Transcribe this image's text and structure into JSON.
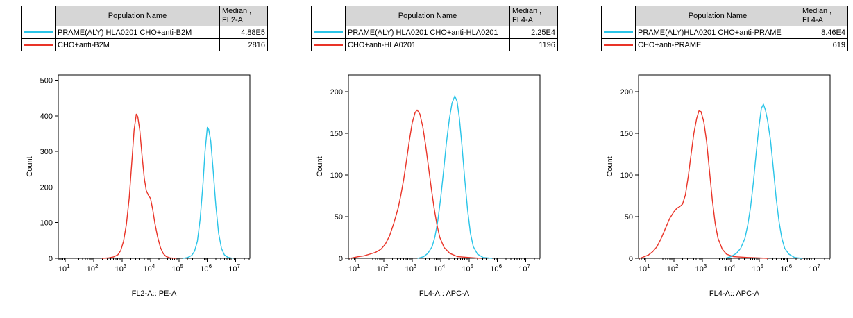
{
  "colors": {
    "cyan": "#29C4E8",
    "red": "#E93428",
    "table_header_bg": "#D6D6D6",
    "axis": "#000000",
    "background": "#FFFFFF"
  },
  "panels": [
    {
      "table": {
        "population_header": "Population Name",
        "median_header_line1": "Median ,",
        "median_header_line2": "FL2-A",
        "rows": [
          {
            "color_key": "cyan",
            "name": "PRAME(ALY) HLA0201 CHO+anti-B2M",
            "median": "4.88E5"
          },
          {
            "color_key": "red",
            "name": "CHO+anti-B2M",
            "median": "2816"
          }
        ]
      }
    },
    {
      "table": {
        "population_header": "Population Name",
        "median_header_line1": "Median ,",
        "median_header_line2": "FL4-A",
        "rows": [
          {
            "color_key": "cyan",
            "name": "PRAME(ALY) HLA0201 CHO+anti-HLA0201",
            "median": "2.25E4"
          },
          {
            "color_key": "red",
            "name": "CHO+anti-HLA0201",
            "median": "1196"
          }
        ]
      }
    },
    {
      "table": {
        "population_header": "Population Name",
        "median_header_line1": "Median ,",
        "median_header_line2": "FL4-A",
        "rows": [
          {
            "color_key": "cyan",
            "name": "PRAME(ALY)HLA0201 CHO+anti-PRAME",
            "median": "8.46E4"
          },
          {
            "color_key": "red",
            "name": "CHO+anti-PRAME",
            "median": "619"
          }
        ]
      }
    }
  ],
  "chart_data": [
    {
      "type": "line",
      "title": "",
      "xlabel": "FL2-A:: PE-A",
      "ylabel": "Count",
      "x_scale": "log10",
      "xlim_log10": [
        0.75,
        7.5
      ],
      "xtick_exponents": [
        1,
        2,
        3,
        4,
        5,
        6,
        7
      ],
      "ylim": [
        0,
        515
      ],
      "yticks": [
        0,
        100,
        200,
        300,
        400,
        500
      ],
      "grid": false,
      "legend": "table-above",
      "series": [
        {
          "name": "PRAME(ALY) HLA0201 CHO+anti-B2M",
          "color_key": "cyan",
          "peak_x_log10": 6.0,
          "peak_count": 368,
          "points": [
            [
              5.15,
              0
            ],
            [
              5.3,
              2
            ],
            [
              5.45,
              8
            ],
            [
              5.55,
              20
            ],
            [
              5.65,
              48
            ],
            [
              5.75,
              110
            ],
            [
              5.85,
              210
            ],
            [
              5.92,
              300
            ],
            [
              6.0,
              368
            ],
            [
              6.05,
              362
            ],
            [
              6.12,
              330
            ],
            [
              6.2,
              255
            ],
            [
              6.3,
              150
            ],
            [
              6.4,
              70
            ],
            [
              6.5,
              28
            ],
            [
              6.6,
              10
            ],
            [
              6.72,
              3
            ],
            [
              6.9,
              0
            ]
          ]
        },
        {
          "name": "CHO+anti-B2M",
          "color_key": "red",
          "peak_x_log10": 3.5,
          "peak_count": 405,
          "points": [
            [
              2.3,
              0
            ],
            [
              2.5,
              1
            ],
            [
              2.7,
              4
            ],
            [
              2.85,
              10
            ],
            [
              2.95,
              22
            ],
            [
              3.05,
              48
            ],
            [
              3.15,
              95
            ],
            [
              3.25,
              170
            ],
            [
              3.35,
              280
            ],
            [
              3.42,
              360
            ],
            [
              3.5,
              405
            ],
            [
              3.55,
              398
            ],
            [
              3.62,
              360
            ],
            [
              3.7,
              290
            ],
            [
              3.78,
              225
            ],
            [
              3.85,
              190
            ],
            [
              3.92,
              178
            ],
            [
              4.0,
              168
            ],
            [
              4.08,
              135
            ],
            [
              4.15,
              100
            ],
            [
              4.25,
              60
            ],
            [
              4.35,
              30
            ],
            [
              4.45,
              13
            ],
            [
              4.55,
              5
            ],
            [
              4.7,
              1
            ],
            [
              4.9,
              0
            ]
          ]
        }
      ]
    },
    {
      "type": "line",
      "title": "",
      "xlabel": "FL4-A:: APC-A",
      "ylabel": "Count",
      "x_scale": "log10",
      "xlim_log10": [
        0.75,
        7.5
      ],
      "xtick_exponents": [
        1,
        2,
        3,
        4,
        5,
        6,
        7
      ],
      "ylim": [
        0,
        220
      ],
      "yticks": [
        0,
        50,
        100,
        150,
        200
      ],
      "grid": false,
      "legend": "table-above",
      "series": [
        {
          "name": "PRAME(ALY) HLA0201 CHO+anti-HLA0201",
          "color_key": "cyan",
          "peak_x_log10": 4.5,
          "peak_count": 195,
          "points": [
            [
              3.2,
              0
            ],
            [
              3.4,
              2
            ],
            [
              3.55,
              6
            ],
            [
              3.7,
              14
            ],
            [
              3.8,
              26
            ],
            [
              3.9,
              45
            ],
            [
              4.0,
              72
            ],
            [
              4.1,
              104
            ],
            [
              4.2,
              138
            ],
            [
              4.3,
              166
            ],
            [
              4.4,
              186
            ],
            [
              4.5,
              195
            ],
            [
              4.58,
              188
            ],
            [
              4.66,
              168
            ],
            [
              4.75,
              135
            ],
            [
              4.85,
              95
            ],
            [
              4.95,
              58
            ],
            [
              5.05,
              30
            ],
            [
              5.15,
              14
            ],
            [
              5.3,
              5
            ],
            [
              5.5,
              1
            ],
            [
              5.8,
              0
            ]
          ]
        },
        {
          "name": "CHO+anti-HLA0201",
          "color_key": "red",
          "peak_x_log10": 3.17,
          "peak_count": 178,
          "points": [
            [
              0.8,
              0
            ],
            [
              0.95,
              1
            ],
            [
              1.1,
              2
            ],
            [
              1.3,
              3
            ],
            [
              1.5,
              5
            ],
            [
              1.7,
              7
            ],
            [
              1.9,
              11
            ],
            [
              2.05,
              17
            ],
            [
              2.2,
              27
            ],
            [
              2.35,
              42
            ],
            [
              2.5,
              60
            ],
            [
              2.6,
              76
            ],
            [
              2.7,
              95
            ],
            [
              2.8,
              118
            ],
            [
              2.9,
              142
            ],
            [
              3.0,
              163
            ],
            [
              3.1,
              175
            ],
            [
              3.17,
              178
            ],
            [
              3.27,
              173
            ],
            [
              3.37,
              158
            ],
            [
              3.47,
              136
            ],
            [
              3.57,
              110
            ],
            [
              3.67,
              84
            ],
            [
              3.77,
              60
            ],
            [
              3.87,
              40
            ],
            [
              3.97,
              25
            ],
            [
              4.12,
              13
            ],
            [
              4.32,
              6
            ],
            [
              4.6,
              2
            ],
            [
              5.0,
              1
            ],
            [
              5.4,
              0
            ]
          ]
        }
      ]
    },
    {
      "type": "line",
      "title": "",
      "xlabel": "FL4-A:: APC-A",
      "ylabel": "Count",
      "x_scale": "log10",
      "xlim_log10": [
        0.75,
        7.5
      ],
      "xtick_exponents": [
        1,
        2,
        3,
        4,
        5,
        6,
        7
      ],
      "ylim": [
        0,
        220
      ],
      "yticks": [
        0,
        50,
        100,
        150,
        200
      ],
      "grid": false,
      "legend": "table-above",
      "series": [
        {
          "name": "PRAME(ALY)HLA0201 CHO+anti-PRAME",
          "color_key": "cyan",
          "peak_x_log10": 5.15,
          "peak_count": 185,
          "points": [
            [
              3.8,
              0
            ],
            [
              4.0,
              2
            ],
            [
              4.2,
              6
            ],
            [
              4.35,
              12
            ],
            [
              4.5,
              24
            ],
            [
              4.6,
              40
            ],
            [
              4.7,
              62
            ],
            [
              4.8,
              92
            ],
            [
              4.9,
              128
            ],
            [
              5.0,
              160
            ],
            [
              5.08,
              180
            ],
            [
              5.15,
              185
            ],
            [
              5.22,
              178
            ],
            [
              5.3,
              165
            ],
            [
              5.4,
              142
            ],
            [
              5.5,
              108
            ],
            [
              5.6,
              72
            ],
            [
              5.7,
              44
            ],
            [
              5.8,
              24
            ],
            [
              5.9,
              12
            ],
            [
              6.05,
              5
            ],
            [
              6.25,
              1
            ],
            [
              6.5,
              0
            ]
          ]
        },
        {
          "name": "CHO+anti-PRAME",
          "color_key": "red",
          "peak_x_log10": 2.88,
          "peak_count": 177,
          "points": [
            [
              0.8,
              0
            ],
            [
              0.95,
              2
            ],
            [
              1.1,
              4
            ],
            [
              1.25,
              8
            ],
            [
              1.4,
              14
            ],
            [
              1.55,
              24
            ],
            [
              1.7,
              36
            ],
            [
              1.85,
              48
            ],
            [
              2.0,
              56
            ],
            [
              2.1,
              60
            ],
            [
              2.2,
              62
            ],
            [
              2.3,
              65
            ],
            [
              2.4,
              76
            ],
            [
              2.5,
              98
            ],
            [
              2.6,
              124
            ],
            [
              2.7,
              150
            ],
            [
              2.8,
              168
            ],
            [
              2.88,
              177
            ],
            [
              2.95,
              176
            ],
            [
              3.05,
              164
            ],
            [
              3.15,
              140
            ],
            [
              3.25,
              105
            ],
            [
              3.35,
              70
            ],
            [
              3.45,
              42
            ],
            [
              3.55,
              24
            ],
            [
              3.7,
              11
            ],
            [
              3.85,
              5
            ],
            [
              4.1,
              2
            ],
            [
              4.6,
              1
            ],
            [
              5.3,
              0
            ]
          ]
        }
      ]
    }
  ]
}
